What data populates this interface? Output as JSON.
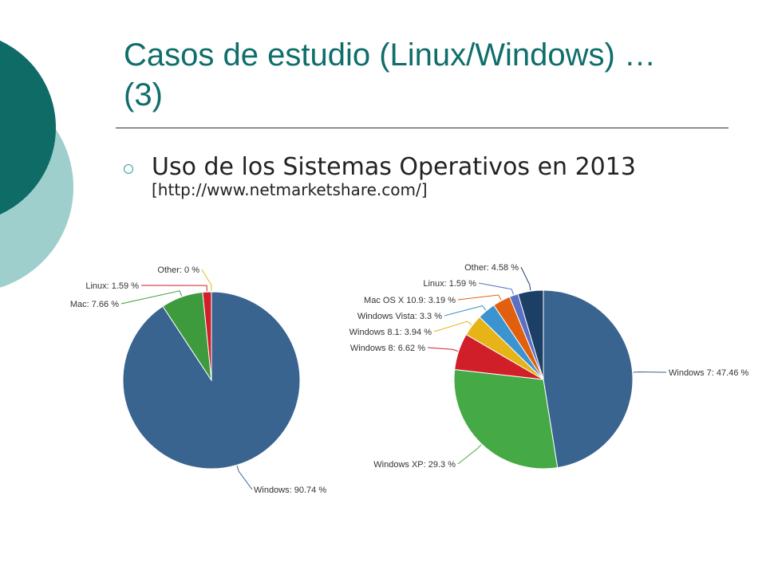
{
  "slide": {
    "title_line1": "Casos de estudio (Linux/Windows) …",
    "title_line2": "(3)",
    "bullet": "Uso de los Sistemas Operativos en 2013",
    "source": "[http://www.netmarketshare.com/]"
  },
  "chart_data": [
    {
      "type": "pie",
      "slices": [
        {
          "label": "Windows: 90.74 %",
          "value": 90.74,
          "color": "#3a6490"
        },
        {
          "label": "Mac: 7.66 %",
          "value": 7.66,
          "color": "#3d9b3d"
        },
        {
          "label": "Linux: 1.59 %",
          "value": 1.59,
          "color": "#d11f2a"
        },
        {
          "label": "Other: 0 %",
          "value": 0,
          "color": "#e5b81a"
        }
      ]
    },
    {
      "type": "pie",
      "slices": [
        {
          "label": "Windows 7: 47.46 %",
          "value": 47.46,
          "color": "#3a6490"
        },
        {
          "label": "Windows XP: 29.3 %",
          "value": 29.3,
          "color": "#45a945"
        },
        {
          "label": "Windows 8: 6.62 %",
          "value": 6.62,
          "color": "#d11f2a"
        },
        {
          "label": "Windows 8.1: 3.94 %",
          "value": 3.94,
          "color": "#e6b416"
        },
        {
          "label": "Windows Vista: 3.3 %",
          "value": 3.3,
          "color": "#3b94d0"
        },
        {
          "label": "Mac OS X 10.9: 3.19 %",
          "value": 3.19,
          "color": "#e0600f"
        },
        {
          "label": "Linux: 1.59 %",
          "value": 1.59,
          "color": "#5b6fc4"
        },
        {
          "label": "Other: 4.58 %",
          "value": 4.58,
          "color": "#1c3f66"
        }
      ]
    }
  ]
}
